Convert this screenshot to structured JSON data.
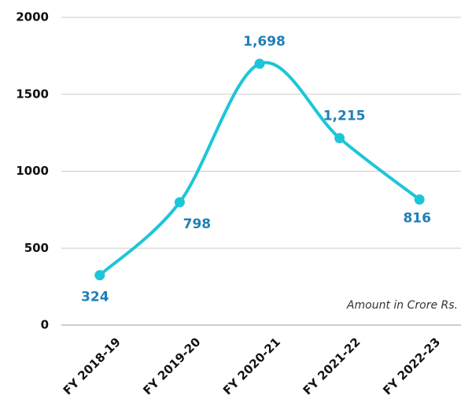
{
  "chart_data": {
    "type": "line",
    "categories": [
      "FY 2018-19",
      "FY 2019-20",
      "FY 2020-21",
      "FY 2021-22",
      "FY 2022-23"
    ],
    "values": [
      324,
      798,
      1698,
      1215,
      816
    ],
    "value_labels": [
      "324",
      "798",
      "1,698",
      "1,215",
      "816"
    ],
    "color": "#1cc6d8",
    "ylim": [
      0,
      2000
    ],
    "yticks": [
      0,
      500,
      1000,
      1500,
      2000
    ],
    "grid": true,
    "annotation": "Amount in Crore Rs."
  }
}
